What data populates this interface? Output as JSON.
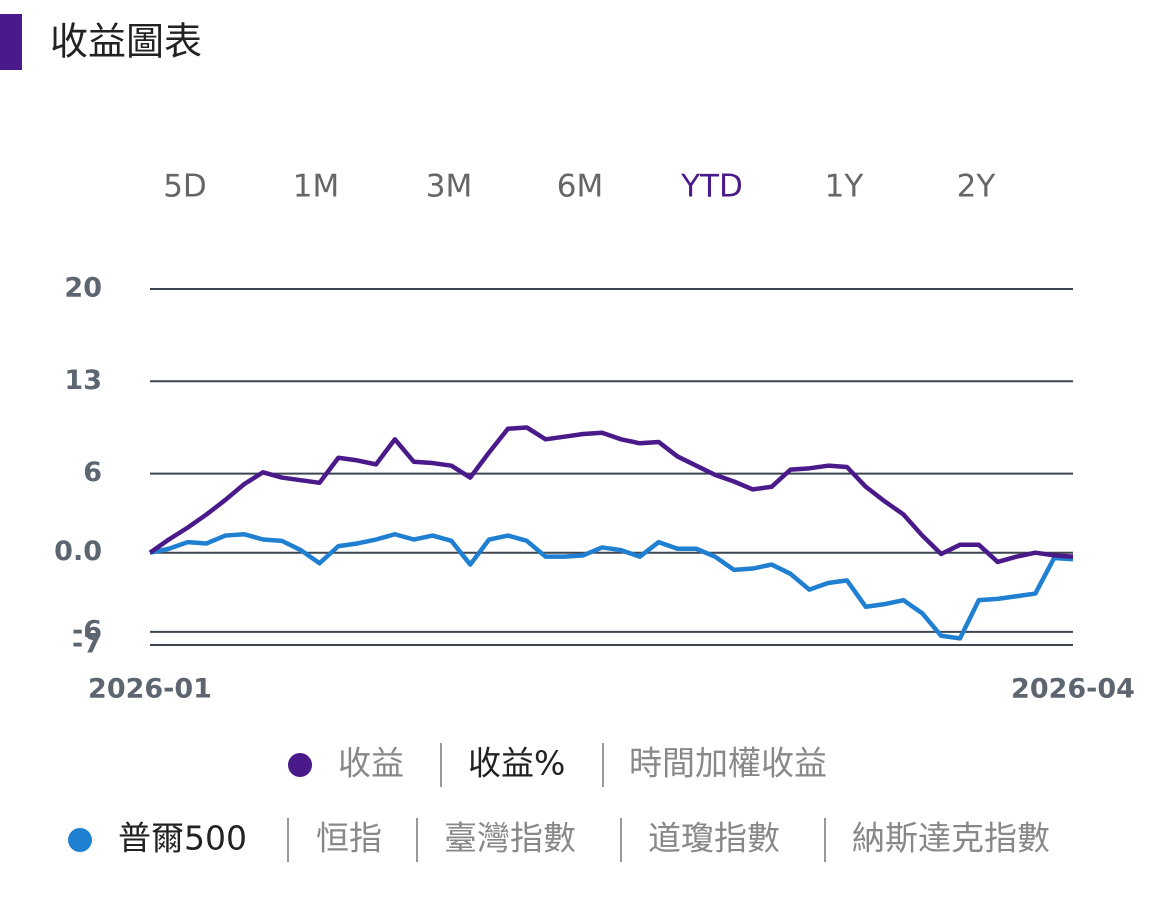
{
  "header": {
    "title": "收益圖表"
  },
  "tabs": {
    "items": [
      "5D",
      "1M",
      "3M",
      "6M",
      "YTD",
      "1Y",
      "2Y"
    ],
    "selected": 4
  },
  "chart_data": {
    "type": "line",
    "categories": [
      "2026-01",
      null,
      null,
      null,
      null,
      null,
      null,
      null,
      null,
      null,
      null,
      null,
      null,
      null,
      null,
      null,
      null,
      null,
      null,
      null,
      null,
      null,
      null,
      null,
      null,
      null,
      null,
      null,
      null,
      null,
      null,
      null,
      null,
      null,
      null,
      null,
      null,
      null,
      null,
      null,
      null,
      null,
      null,
      null,
      null,
      null,
      null,
      null,
      null,
      "2026-04"
    ],
    "series": [
      {
        "color": "#4a1a8a",
        "values": [
          0,
          1.0,
          1.9,
          2.9,
          4.0,
          5.2,
          6.1,
          5.7,
          5.5,
          5.3,
          7.2,
          7.0,
          6.7,
          8.6,
          6.9,
          6.8,
          6.6,
          5.7,
          7.6,
          9.4,
          9.5,
          8.6,
          8.8,
          9.0,
          9.1,
          8.6,
          8.3,
          8.4,
          7.3,
          6.6,
          5.9,
          5.4,
          4.8,
          5.0,
          6.3,
          6.4,
          6.6,
          6.5,
          5.0,
          3.9,
          2.9,
          1.3,
          -0.1,
          0.6,
          0.6,
          -0.7,
          -0.3,
          0.0,
          -0.2,
          -0.3
        ]
      },
      {
        "color": "#1f7fd0",
        "values": [
          0,
          0.3,
          0.8,
          0.7,
          1.3,
          1.4,
          1.0,
          0.9,
          0.2,
          -0.8,
          0.5,
          0.7,
          1.0,
          1.4,
          1.0,
          1.3,
          0.9,
          -0.9,
          1.0,
          1.3,
          0.9,
          -0.3,
          -0.3,
          -0.2,
          0.4,
          0.2,
          -0.3,
          0.8,
          0.3,
          0.3,
          -0.3,
          -1.3,
          -1.2,
          -0.9,
          -1.6,
          -2.8,
          -2.3,
          -2.1,
          -4.1,
          -3.9,
          -3.6,
          -4.6,
          -6.3,
          -6.5,
          -3.6,
          -3.5,
          -3.3,
          -3.1,
          -0.4,
          -0.5
        ]
      }
    ],
    "ylim": [
      -7,
      20
    ],
    "yticks": [
      20,
      13,
      6,
      {
        "value": 0,
        "label": "0.0"
      },
      -6,
      -7
    ],
    "grid": true
  },
  "legend": {
    "metric_options": [
      "收益",
      "收益%",
      "時間加權收益"
    ],
    "selected_metric": 1,
    "index_options": [
      "普爾500",
      "恒指",
      "臺灣指數",
      "道瓊指數",
      "納斯達克指數"
    ],
    "selected_index": 0
  }
}
